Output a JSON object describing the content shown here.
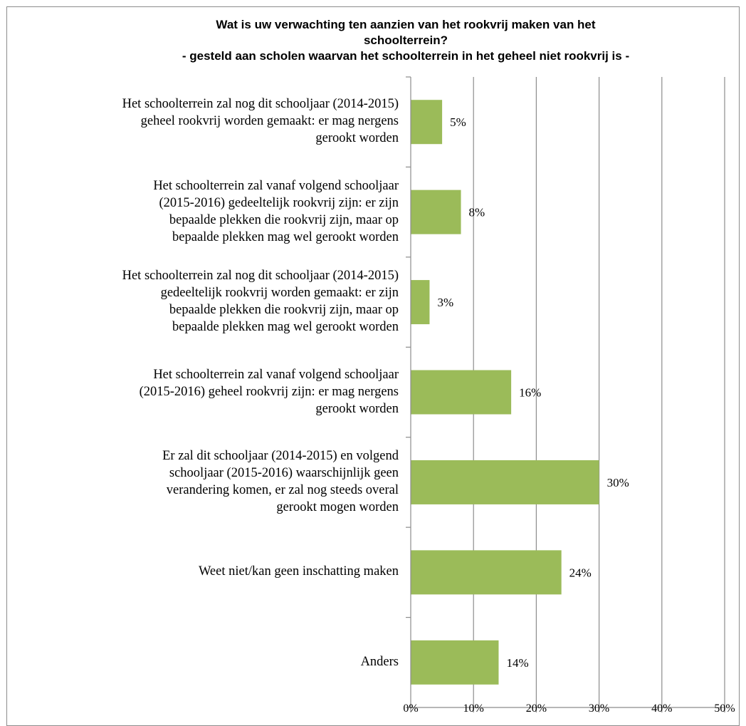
{
  "chart_data": {
    "type": "bar",
    "orientation": "horizontal",
    "title_lines": [
      "Wat is uw verwachting ten aanzien van het rookvrij maken van het",
      "schoolterrein?",
      "- gesteld aan scholen waarvan het schoolterrein in het geheel niet rookvrij is -"
    ],
    "categories": [
      [
        "Het schoolterrein zal nog dit schooljaar (2014-2015)",
        "geheel rookvrij worden gemaakt: er mag nergens",
        "gerookt worden"
      ],
      [
        "Het schoolterrein zal vanaf volgend schooljaar",
        "(2015-2016) gedeeltelijk rookvrij zijn: er zijn",
        "bepaalde plekken die rookvrij zijn, maar op",
        "bepaalde plekken mag wel gerookt worden"
      ],
      [
        "Het schoolterrein zal nog dit schooljaar (2014-2015)",
        "gedeeltelijk rookvrij worden gemaakt: er zijn",
        "bepaalde plekken die rookvrij zijn, maar op",
        "bepaalde plekken mag wel gerookt worden"
      ],
      [
        "Het schoolterrein zal vanaf volgend schooljaar",
        "(2015-2016) geheel rookvrij zijn: er mag nergens",
        "gerookt worden"
      ],
      [
        "Er zal dit schooljaar (2014-2015) en volgend",
        "schooljaar (2015-2016) waarschijnlijk geen",
        "verandering komen, er zal nog steeds overal",
        "gerookt mogen worden"
      ],
      [
        "Weet niet/kan geen inschatting maken"
      ],
      [
        "Anders"
      ]
    ],
    "values": [
      5,
      8,
      3,
      16,
      30,
      24,
      14
    ],
    "value_labels": [
      "5%",
      "8%",
      "3%",
      "16%",
      "30%",
      "24%",
      "14%"
    ],
    "xlim": [
      0,
      50
    ],
    "x_ticks": [
      0,
      10,
      20,
      30,
      40,
      50
    ],
    "x_tick_labels": [
      "0%",
      "10%",
      "20%",
      "30%",
      "40%",
      "50%"
    ],
    "grid": true,
    "bar_color": "#9bbb59",
    "grid_color": "#8c8c8c"
  }
}
